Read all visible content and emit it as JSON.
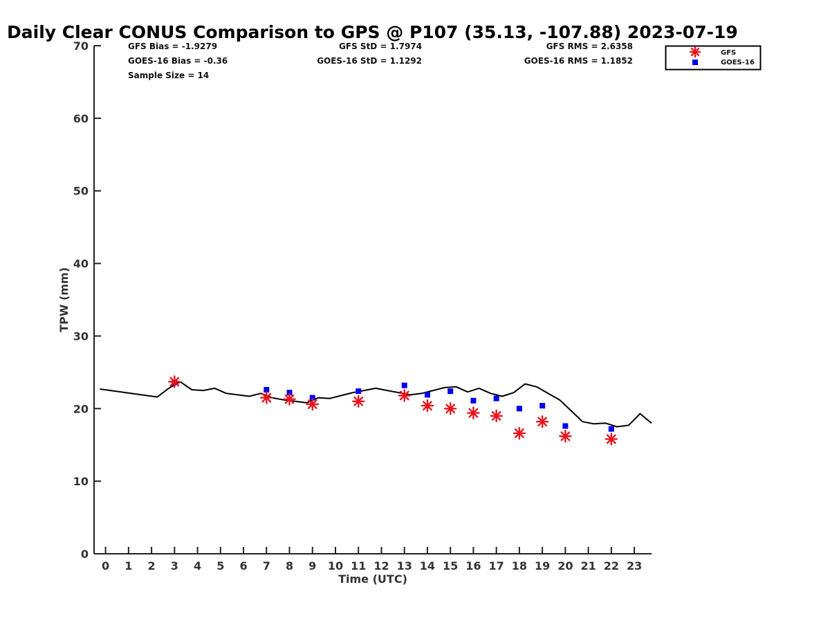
{
  "title": "Daily Clear CONUS Comparison to GPS @ P107 (35.13, -107.88) 2023-07-19",
  "stats": {
    "gfs_bias": "GFS Bias = -1.9279",
    "goes_bias": "GOES-16 Bias = -0.36",
    "sample_size": "Sample Size = 14",
    "gfs_std": "GFS StD = 1.7974",
    "goes_std": "GOES-16 StD = 1.1292",
    "gfs_rms": "GFS RMS = 2.6358",
    "goes_rms": "GOES-16 RMS = 1.1852"
  },
  "chart_data": {
    "type": "scatter",
    "title": "Daily Clear CONUS Comparison to GPS @ P107 (35.13, -107.88) 2023-07-19",
    "xlabel": "Time (UTC)",
    "ylabel": "TPW (mm)",
    "xlim": [
      -0.5,
      23.75
    ],
    "ylim": [
      0,
      70
    ],
    "x_ticks": [
      0,
      1,
      2,
      3,
      4,
      5,
      6,
      7,
      8,
      9,
      10,
      11,
      12,
      13,
      14,
      15,
      16,
      17,
      18,
      19,
      20,
      21,
      22,
      23
    ],
    "y_ticks": [
      0,
      10,
      20,
      30,
      40,
      50,
      60,
      70
    ],
    "legend_position": "top-right",
    "grid": false,
    "series": [
      {
        "name": "GFS",
        "style": "asterisk",
        "color": "#e8141c",
        "x": [
          3,
          7,
          8,
          9,
          11,
          13,
          14,
          15,
          16,
          17,
          18,
          19,
          20,
          22
        ],
        "y": [
          23.7,
          21.5,
          21.3,
          20.6,
          21.0,
          21.8,
          20.4,
          20.0,
          19.4,
          19.0,
          16.6,
          18.2,
          16.2,
          15.8
        ]
      },
      {
        "name": "GOES-16",
        "style": "square",
        "color": "#0000ee",
        "x": [
          3,
          7,
          8,
          9,
          11,
          13,
          14,
          15,
          16,
          17,
          18,
          19,
          20,
          22
        ],
        "y": [
          23.6,
          22.6,
          22.2,
          21.5,
          22.4,
          23.2,
          21.9,
          22.4,
          21.1,
          21.4,
          20.0,
          20.4,
          17.6,
          17.2
        ]
      },
      {
        "style": "line",
        "color": "#000000",
        "x": [
          -0.25,
          2.25,
          2.75,
          3.25,
          3.75,
          4.25,
          4.75,
          5.25,
          6.25,
          6.75,
          7.25,
          7.75,
          8.25,
          8.75,
          9.25,
          9.75,
          10.25,
          10.75,
          11.25,
          11.75,
          12.25,
          12.75,
          13.25,
          13.75,
          14.25,
          14.75,
          15.25,
          15.75,
          16.25,
          16.75,
          17.25,
          17.75,
          18.25,
          18.75,
          19.25,
          19.75,
          20.25,
          20.75,
          21.25,
          21.75,
          22.25,
          22.75,
          23.25,
          23.75
        ],
        "y": [
          22.7,
          21.6,
          22.8,
          23.7,
          22.6,
          22.5,
          22.8,
          22.1,
          21.7,
          22.1,
          21.5,
          21.2,
          21.0,
          20.8,
          21.5,
          21.4,
          21.8,
          22.2,
          22.5,
          22.8,
          22.5,
          22.2,
          21.9,
          22.1,
          22.5,
          22.9,
          23.0,
          22.3,
          22.8,
          22.1,
          21.7,
          22.2,
          23.4,
          23.0,
          22.1,
          21.2,
          19.7,
          18.2,
          17.9,
          18.0,
          17.5,
          17.7,
          19.3,
          18.0
        ]
      }
    ]
  }
}
